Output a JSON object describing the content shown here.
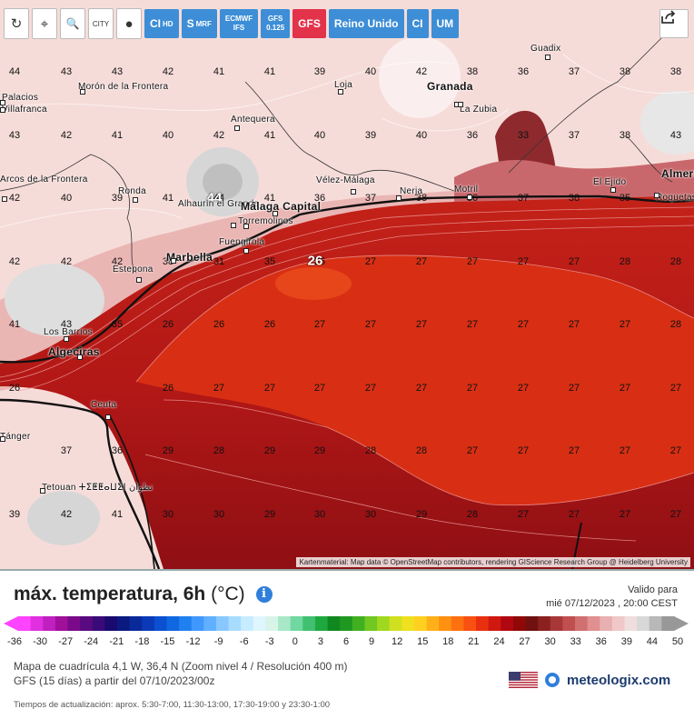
{
  "toolbar": {
    "icon_buttons": [
      {
        "name": "reload-icon",
        "glyph": "↻"
      },
      {
        "name": "location-pin-icon",
        "glyph": "⌖"
      },
      {
        "name": "zoom-out-icon",
        "glyph": "🔍"
      },
      {
        "name": "city-labels-icon",
        "glyph": "CITY"
      },
      {
        "name": "point-marker-icon",
        "glyph": "●"
      }
    ],
    "models": [
      {
        "label": "CI",
        "sub": "HD",
        "active": false
      },
      {
        "label": "S",
        "sub": "MRF",
        "active": false
      },
      {
        "label": "ECMWF",
        "sub": "IFS",
        "active": false,
        "stack": true
      },
      {
        "label": "GFS",
        "sub": "0.125",
        "active": false,
        "stack": true
      },
      {
        "label": "GFS",
        "sub": "",
        "active": true
      },
      {
        "label": "Reino Unido",
        "sub": "",
        "active": false
      },
      {
        "label": "CI",
        "sub": "",
        "active": false
      },
      {
        "label": "UM",
        "sub": "",
        "active": false
      }
    ]
  },
  "map": {
    "attribution": "Kartenmaterial: Map data © OpenStreetMap contributors, rendering GIScience Research Group @ Heidelberg University",
    "temperature_grid": [
      [
        "44",
        "43",
        "43",
        "42",
        "41",
        "41",
        "39",
        "40",
        "42",
        "38",
        "36",
        "37",
        "38",
        "38"
      ],
      [
        "43",
        "42",
        "41",
        "40",
        "42",
        "41",
        "40",
        "39",
        "40",
        "36",
        "33",
        "37",
        "38",
        "43"
      ],
      [
        "42",
        "40",
        "39",
        "41",
        "44",
        "41",
        "36",
        "37",
        "38",
        "36",
        "37",
        "38",
        "35",
        ""
      ],
      [
        "42",
        "42",
        "42",
        "38",
        "31",
        "35",
        "26",
        "27",
        "27",
        "27",
        "27",
        "27",
        "28",
        "28"
      ],
      [
        "41",
        "43",
        "35",
        "26",
        "26",
        "26",
        "27",
        "27",
        "27",
        "27",
        "27",
        "27",
        "27",
        "28"
      ],
      [
        "26",
        "",
        "",
        "26",
        "27",
        "27",
        "27",
        "27",
        "27",
        "27",
        "27",
        "27",
        "27",
        "27"
      ],
      [
        "",
        "37",
        "36",
        "29",
        "28",
        "29",
        "29",
        "28",
        "28",
        "27",
        "27",
        "27",
        "27",
        "27"
      ],
      [
        "39",
        "42",
        "41",
        "30",
        "30",
        "29",
        "30",
        "30",
        "29",
        "28",
        "27",
        "27",
        "27",
        "27"
      ]
    ],
    "cities": [
      {
        "name": "Morón de la Frontera",
        "big": false
      },
      {
        "name": "Palacios",
        "big": false
      },
      {
        "name": "Villafranca",
        "big": false
      },
      {
        "name": "Loja",
        "big": false
      },
      {
        "name": "Granada",
        "big": true
      },
      {
        "name": "Guadix",
        "big": false
      },
      {
        "name": "La Zubia",
        "big": false
      },
      {
        "name": "Antequera",
        "big": false
      },
      {
        "name": "Ronda",
        "big": false
      },
      {
        "name": "Alhaurín el Grande",
        "big": false
      },
      {
        "name": "Málaga Capital",
        "big": true
      },
      {
        "name": "Torremolinos",
        "big": false
      },
      {
        "name": "Vélez-Málaga",
        "big": false
      },
      {
        "name": "Nerja",
        "big": false
      },
      {
        "name": "Motril",
        "big": false
      },
      {
        "name": "El Ejido",
        "big": false
      },
      {
        "name": "Almería",
        "big": true
      },
      {
        "name": "Roquetas de Mar",
        "big": false
      },
      {
        "name": "Fuengirola",
        "big": false
      },
      {
        "name": "Marbella",
        "big": true
      },
      {
        "name": "Estepona",
        "big": false
      },
      {
        "name": "Los Barrios",
        "big": false
      },
      {
        "name": "Algeciras",
        "big": true
      },
      {
        "name": "Ceuta",
        "big": false
      },
      {
        "name": "Tetouan ⵜⵉⵟⵟⴰⵡⵉⵏ تطوان",
        "big": false
      },
      {
        "name": "Arcos de la Frontera",
        "big": false
      },
      {
        "name": "Tánger",
        "big": false
      }
    ]
  },
  "footer": {
    "title": "máx. temperatura, 6h",
    "unit": "(°C)",
    "valid_label": "Valido para",
    "valid_time": "mié 07/12/2023 , 20:00 CEST",
    "scale_ticks": [
      "-36",
      "-30",
      "-27",
      "-24",
      "-21",
      "-18",
      "-15",
      "-12",
      "-9",
      "-6",
      "-3",
      "0",
      "3",
      "6",
      "9",
      "12",
      "15",
      "18",
      "21",
      "24",
      "27",
      "30",
      "33",
      "36",
      "39",
      "44",
      "50"
    ],
    "grid_info": "Mapa de cuadrícula 4,1 W, 36,4 N (Zoom nivel 4 / Resolución 400 m)",
    "model_info": "GFS (15 días) a partir del 07/10/2023/00z",
    "update_times": "Tiempos de actualización: aprox. 5:30-7:00, 11:30-13:00, 17:30-19:00 y 23:30-1:00",
    "brand": "meteologix.com",
    "info_glyph": "i"
  }
}
